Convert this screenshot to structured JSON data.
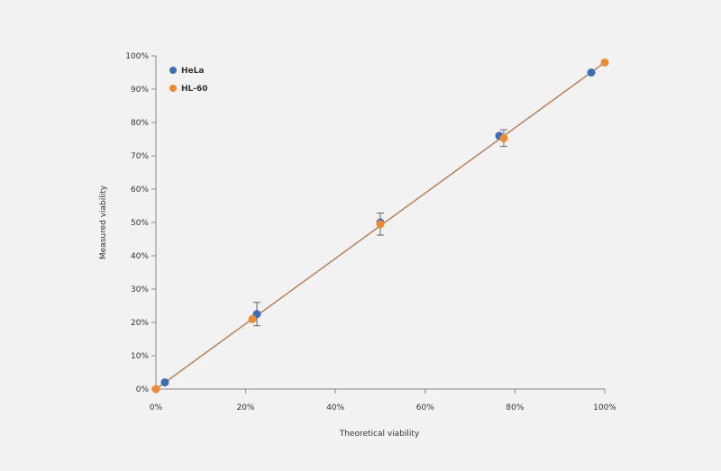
{
  "chart_data": {
    "type": "scatter",
    "xlabel": "Theoretical viability",
    "ylabel": "Measured viability",
    "xlim": [
      0,
      100
    ],
    "ylim": [
      0,
      100
    ],
    "x_ticks": [
      "0%",
      "20%",
      "40%",
      "60%",
      "80%",
      "100%"
    ],
    "y_ticks": [
      "0%",
      "10%",
      "20%",
      "30%",
      "40%",
      "50%",
      "60%",
      "70%",
      "80%",
      "90%",
      "100%"
    ],
    "legend_position": "top-left",
    "grid": false,
    "series": [
      {
        "name": "HeLa",
        "color": "#3a6db5",
        "points": [
          {
            "x": 2,
            "y": 2,
            "err": 0
          },
          {
            "x": 22.5,
            "y": 22.5,
            "err": 3.5
          },
          {
            "x": 50,
            "y": 50,
            "err": 0
          },
          {
            "x": 76.5,
            "y": 76,
            "err": 0
          },
          {
            "x": 97,
            "y": 95,
            "err": 0
          }
        ]
      },
      {
        "name": "HL-60",
        "color": "#ee8a2f",
        "points": [
          {
            "x": 0,
            "y": 0,
            "err": 0
          },
          {
            "x": 21.5,
            "y": 21,
            "err": 0
          },
          {
            "x": 50,
            "y": 49.5,
            "err": 3.3
          },
          {
            "x": 77.5,
            "y": 75.3,
            "err": 2.5
          },
          {
            "x": 100,
            "y": 98,
            "err": 0
          }
        ]
      }
    ],
    "fit_line": {
      "x": [
        0,
        100
      ],
      "y": [
        0,
        98
      ],
      "color": "#ee8a2f"
    }
  }
}
